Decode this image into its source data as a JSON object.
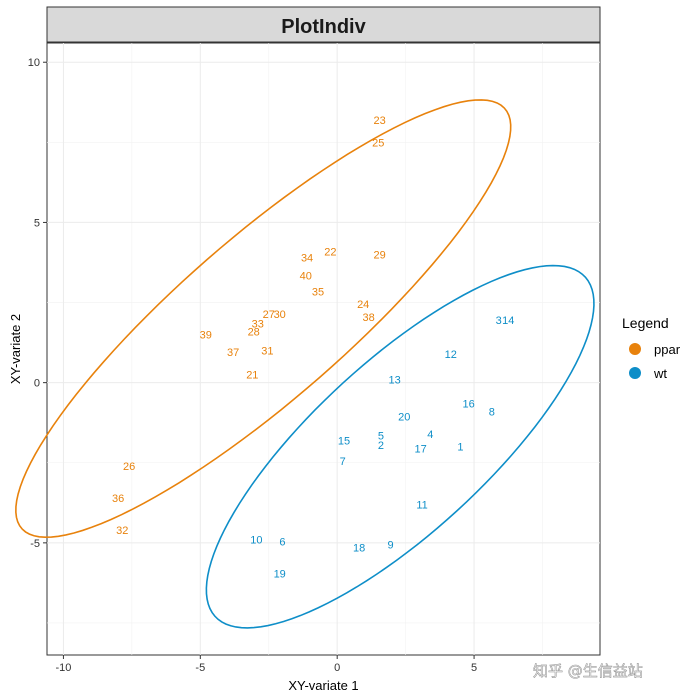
{
  "chart_data": {
    "type": "scatter",
    "title": "PlotIndiv",
    "xlabel": "XY-variate 1",
    "ylabel": "XY-variate 2",
    "xlim": [
      -10.6,
      9.6
    ],
    "ylim": [
      -8.5,
      10.6
    ],
    "x_ticks": [
      -10,
      -5,
      0,
      5
    ],
    "y_ticks": [
      -5,
      0,
      5,
      10
    ],
    "x_tick_labels": [
      "-10",
      "-5",
      "0",
      "5"
    ],
    "y_tick_labels": [
      "-5",
      "0",
      "5",
      "10"
    ],
    "grid": true,
    "point_style": "sample-number labels",
    "legend": {
      "title": "Legend",
      "placement": "right",
      "entries": [
        {
          "label": "ppar",
          "color": "#E8820C"
        },
        {
          "label": "wt",
          "color": "#0E8EC8"
        }
      ]
    },
    "series": [
      {
        "name": "ppar",
        "color": "#E8820C",
        "ellipse": {
          "center": [
            -2.7,
            2.0
          ],
          "semi_axes": [
            11.0,
            2.7
          ],
          "angle_deg": 36.0
        },
        "points": [
          {
            "label": "23",
            "x": 1.55,
            "y": 8.2
          },
          {
            "label": "25",
            "x": 1.5,
            "y": 7.5
          },
          {
            "label": "22",
            "x": -0.25,
            "y": 4.1
          },
          {
            "label": "29",
            "x": 1.55,
            "y": 4.0
          },
          {
            "label": "34",
            "x": -1.1,
            "y": 3.9
          },
          {
            "label": "40",
            "x": -1.15,
            "y": 3.35
          },
          {
            "label": "35",
            "x": -0.7,
            "y": 2.85
          },
          {
            "label": "24",
            "x": 0.95,
            "y": 2.45
          },
          {
            "label": "38",
            "x": 1.15,
            "y": 2.05
          },
          {
            "label": "27",
            "x": -2.5,
            "y": 2.15
          },
          {
            "label": "30",
            "x": -2.1,
            "y": 2.15
          },
          {
            "label": "33",
            "x": -2.9,
            "y": 1.85
          },
          {
            "label": "28",
            "x": -3.05,
            "y": 1.6
          },
          {
            "label": "39",
            "x": -4.8,
            "y": 1.5
          },
          {
            "label": "37",
            "x": -3.8,
            "y": 0.95
          },
          {
            "label": "31",
            "x": -2.55,
            "y": 1.0
          },
          {
            "label": "21",
            "x": -3.1,
            "y": 0.25
          },
          {
            "label": "26",
            "x": -7.6,
            "y": -2.6
          },
          {
            "label": "36",
            "x": -8.0,
            "y": -3.6
          },
          {
            "label": "32",
            "x": -7.85,
            "y": -4.6
          }
        ]
      },
      {
        "name": "wt",
        "color": "#0E8EC8",
        "ellipse": {
          "center": [
            2.3,
            -2.0
          ],
          "semi_axes": [
            8.6,
            2.85
          ],
          "angle_deg": 37.0
        },
        "points": [
          {
            "label": "3",
            "x": 5.9,
            "y": 1.95
          },
          {
            "label": "14",
            "x": 6.25,
            "y": 1.95
          },
          {
            "label": "12",
            "x": 4.15,
            "y": 0.9
          },
          {
            "label": "13",
            "x": 2.1,
            "y": 0.1
          },
          {
            "label": "16",
            "x": 4.8,
            "y": -0.65
          },
          {
            "label": "8",
            "x": 5.65,
            "y": -0.9
          },
          {
            "label": "20",
            "x": 2.45,
            "y": -1.05
          },
          {
            "label": "4",
            "x": 3.4,
            "y": -1.6
          },
          {
            "label": "5",
            "x": 1.6,
            "y": -1.65
          },
          {
            "label": "15",
            "x": 0.25,
            "y": -1.8
          },
          {
            "label": "2",
            "x": 1.6,
            "y": -1.95
          },
          {
            "label": "17",
            "x": 3.05,
            "y": -2.05
          },
          {
            "label": "1",
            "x": 4.5,
            "y": -2.0
          },
          {
            "label": "7",
            "x": 0.2,
            "y": -2.45
          },
          {
            "label": "11",
            "x": 3.1,
            "y": -3.8
          },
          {
            "label": "10",
            "x": -2.95,
            "y": -4.9
          },
          {
            "label": "6",
            "x": -2.0,
            "y": -4.95
          },
          {
            "label": "18",
            "x": 0.8,
            "y": -5.15
          },
          {
            "label": "9",
            "x": 1.95,
            "y": -5.05
          },
          {
            "label": "19",
            "x": -2.1,
            "y": -5.95
          }
        ]
      }
    ]
  },
  "watermark": "知乎 @生信益站"
}
